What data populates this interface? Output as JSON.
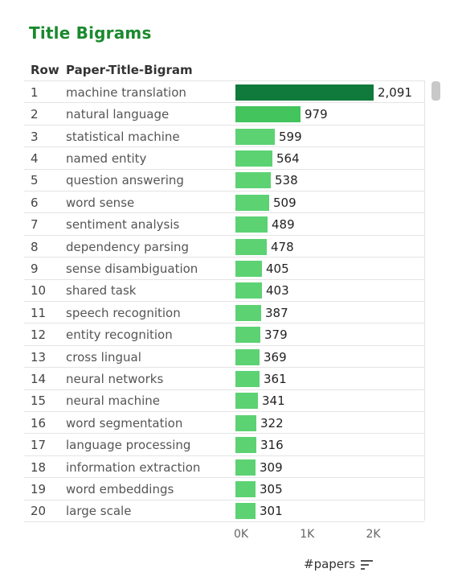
{
  "title": "Title Bigrams",
  "columns": {
    "row": "Row",
    "bigram": "Paper-Title-Bigram"
  },
  "axis_title": "#papers",
  "colors": {
    "title": "#1a8a2e",
    "bar_max": "#107a3c",
    "bar_high": "#43c45c",
    "bar": "#5cd273"
  },
  "chart_data": {
    "type": "bar",
    "orientation": "horizontal",
    "categories": [
      "machine translation",
      "natural language",
      "statistical machine",
      "named entity",
      "question answering",
      "word sense",
      "sentiment analysis",
      "dependency parsing",
      "sense disambiguation",
      "shared task",
      "speech recognition",
      "entity recognition",
      "cross lingual",
      "neural networks",
      "neural machine",
      "word segmentation",
      "language processing",
      "information extraction",
      "word embeddings",
      "large scale"
    ],
    "row_numbers": [
      "1",
      "2",
      "3",
      "4",
      "5",
      "6",
      "7",
      "8",
      "9",
      "10",
      "11",
      "12",
      "13",
      "14",
      "15",
      "16",
      "17",
      "18",
      "19",
      "20"
    ],
    "values": [
      2091,
      979,
      599,
      564,
      538,
      509,
      489,
      478,
      405,
      403,
      387,
      379,
      369,
      361,
      341,
      322,
      316,
      309,
      305,
      301
    ],
    "value_labels": [
      "2,091",
      "979",
      "599",
      "564",
      "538",
      "509",
      "489",
      "478",
      "405",
      "403",
      "387",
      "379",
      "369",
      "361",
      "341",
      "322",
      "316",
      "309",
      "305",
      "301"
    ],
    "x_ticks": [
      {
        "value": 0,
        "label": "0K"
      },
      {
        "value": 1000,
        "label": "1K"
      },
      {
        "value": 2000,
        "label": "2K"
      }
    ],
    "xlim": [
      0,
      2200
    ],
    "grid": false,
    "legend": "none"
  }
}
